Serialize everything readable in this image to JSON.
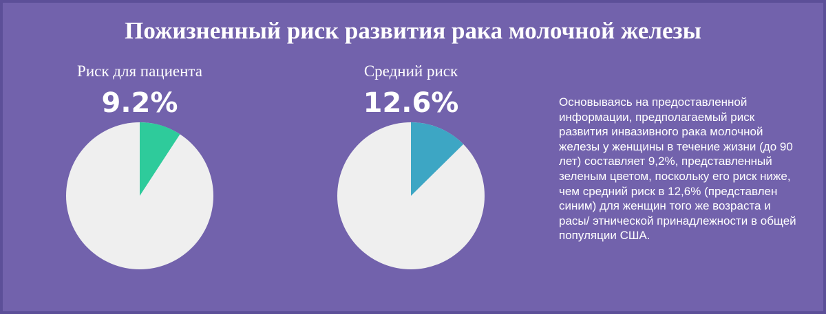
{
  "title": "Пожизненный риск развития рака молочной железы",
  "chart_data": [
    {
      "type": "pie",
      "title": "Риск для пациента",
      "values": [
        9.2
      ],
      "value_labels": [
        "9.2%"
      ],
      "color": "#2ecb9b"
    },
    {
      "type": "pie",
      "title": "Средний риск",
      "values": [
        12.6
      ],
      "value_labels": [
        "12.6%"
      ],
      "color": "#3da6c4"
    }
  ],
  "description": "Основываясь на предоставленной информации, предполагаемый риск развития инвазивного рака молочной железы у женщины в течение жизни (до 90 лет) составляет 9,2%, представленный зеленым цветом, поскольку его риск ниже, чем средний риск в 12,6% (представлен синим) для женщин того же возраста и расы/ этнической принадлежности в общей популяции США."
}
